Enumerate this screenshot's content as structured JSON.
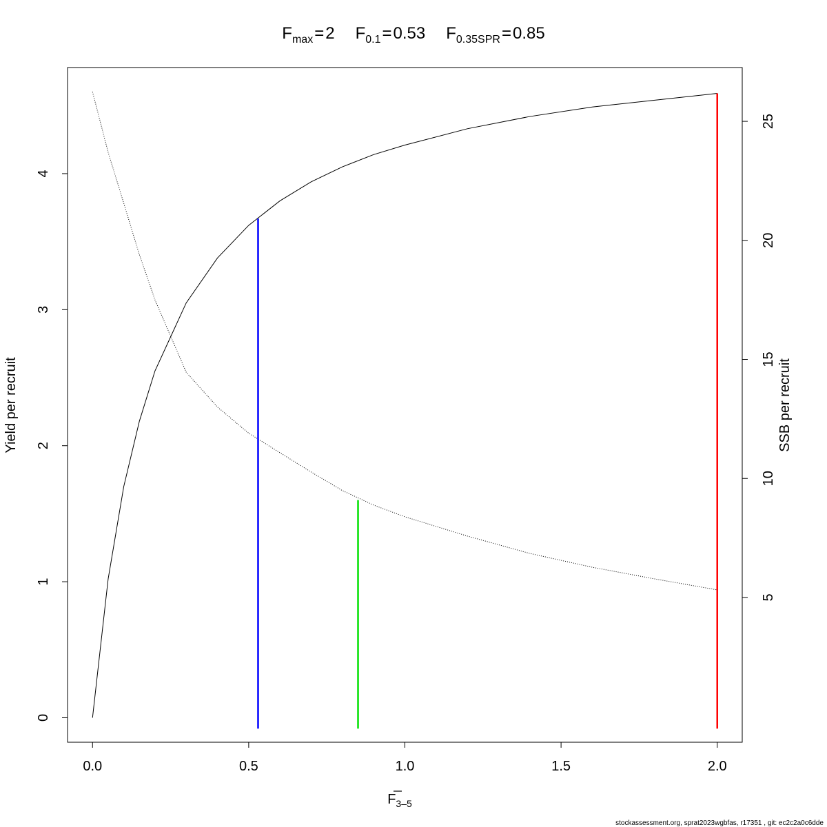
{
  "chart_data": {
    "type": "line",
    "title_sep": "=",
    "reference_lines": [
      {
        "symbol": "F",
        "sub": "max",
        "x": 2,
        "top": 4.59,
        "color": "#ff0000"
      },
      {
        "symbol": "F",
        "sub": "0.1",
        "x": 0.53,
        "top": 3.67,
        "color": "#0000ff"
      },
      {
        "symbol": "F",
        "sub": "0.35SPR",
        "x": 0.85,
        "top": 1.6,
        "color": "#00e000"
      }
    ],
    "ref_line_bottom": -0.08,
    "xlabel": {
      "symbol": "F",
      "sub": "3–5"
    },
    "ylabel": "Yield per recruit",
    "y2label": "SSB per recruit",
    "footer": "stockassessment.org, sprat2023wgbfas, r17351 , git: ec2c2a0c6dde",
    "x": [
      0,
      0.05,
      0.1,
      0.15,
      0.2,
      0.3,
      0.4,
      0.5,
      0.6,
      0.7,
      0.8,
      0.9,
      1.0,
      1.2,
      1.4,
      1.6,
      1.8,
      2.0
    ],
    "series": [
      {
        "color": "#000000",
        "style": "solid",
        "values": [
          0,
          1.02,
          1.7,
          2.18,
          2.55,
          3.05,
          3.38,
          3.62,
          3.8,
          3.94,
          4.05,
          4.14,
          4.21,
          4.33,
          4.42,
          4.49,
          4.54,
          4.59
        ]
      },
      {
        "color": "#000000",
        "style": "dotted",
        "axis": "y2",
        "values": [
          26.24,
          23.7,
          21.56,
          19.4,
          17.5,
          14.46,
          13.0,
          11.9,
          11.08,
          10.27,
          9.49,
          8.88,
          8.39,
          7.58,
          6.85,
          6.27,
          5.78,
          5.32
        ]
      }
    ],
    "xlim": [
      -0.08,
      2.08
    ],
    "xticks": [
      {
        "value": 0,
        "label": "0.0"
      },
      0.5,
      {
        "value": 1,
        "label": "1.0"
      },
      1.5,
      {
        "value": 2,
        "label": "2.0"
      }
    ],
    "ylim": [
      -0.18,
      4.78
    ],
    "yticks": [
      0,
      1,
      2,
      3,
      4
    ],
    "y2lim": [
      -1.08,
      27.26
    ],
    "y2ticks": [
      5,
      10,
      15,
      20,
      25
    ]
  }
}
